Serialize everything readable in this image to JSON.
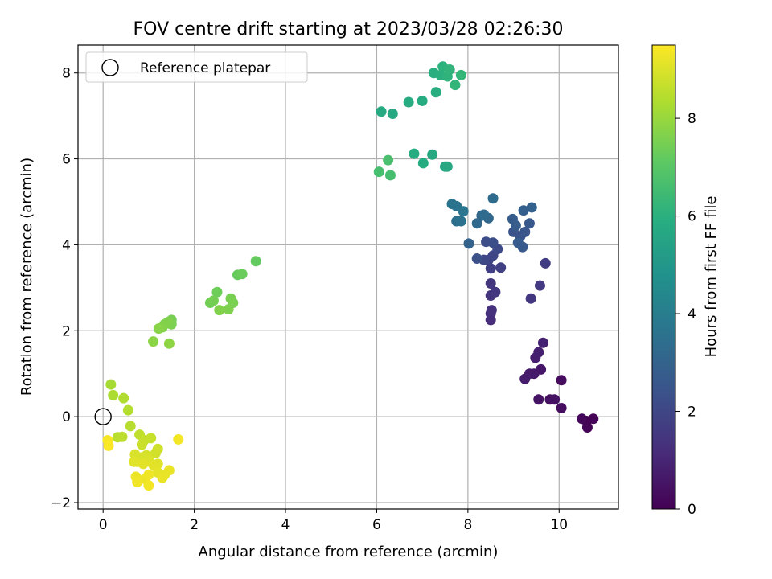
{
  "chart_data": {
    "type": "scatter",
    "title": "FOV centre drift starting at 2023/03/28 02:26:30",
    "xlabel": "Angular distance from reference (arcmin)",
    "ylabel": "Rotation from reference (arcmin)",
    "xlim": [
      -0.55,
      11.3
    ],
    "ylim": [
      -2.15,
      8.65
    ],
    "xticks": [
      0,
      2,
      4,
      6,
      8,
      10
    ],
    "yticks": [
      -2,
      0,
      2,
      4,
      6,
      8
    ],
    "grid": true,
    "legend": {
      "position": "top-left",
      "entries": [
        "Reference platepar"
      ]
    },
    "reference_point": {
      "x": 0,
      "y": 0
    },
    "colorbar": {
      "label": "Hours from first FF file",
      "range": [
        0,
        9.5
      ],
      "ticks": [
        0,
        2,
        4,
        6,
        8
      ],
      "colormap": "viridis"
    },
    "points": [
      {
        "x": 10.6,
        "y": -0.1,
        "c": 0.0
      },
      {
        "x": 10.75,
        "y": -0.05,
        "c": 0.05
      },
      {
        "x": 10.62,
        "y": -0.25,
        "c": 0.1
      },
      {
        "x": 10.5,
        "y": -0.05,
        "c": 0.15
      },
      {
        "x": 10.05,
        "y": 0.85,
        "c": 0.3
      },
      {
        "x": 10.05,
        "y": 0.2,
        "c": 0.35
      },
      {
        "x": 9.8,
        "y": 0.4,
        "c": 0.4
      },
      {
        "x": 9.9,
        "y": 0.4,
        "c": 0.45
      },
      {
        "x": 9.55,
        "y": 0.4,
        "c": 0.5
      },
      {
        "x": 9.6,
        "y": 1.1,
        "c": 0.6
      },
      {
        "x": 9.45,
        "y": 1.0,
        "c": 0.65
      },
      {
        "x": 9.35,
        "y": 1.0,
        "c": 0.7
      },
      {
        "x": 9.25,
        "y": 0.88,
        "c": 0.75
      },
      {
        "x": 9.48,
        "y": 1.37,
        "c": 0.8
      },
      {
        "x": 9.55,
        "y": 1.5,
        "c": 0.85
      },
      {
        "x": 9.65,
        "y": 1.72,
        "c": 0.9
      },
      {
        "x": 8.5,
        "y": 2.25,
        "c": 1.2
      },
      {
        "x": 8.5,
        "y": 2.4,
        "c": 1.25
      },
      {
        "x": 8.52,
        "y": 2.48,
        "c": 1.3
      },
      {
        "x": 8.5,
        "y": 2.82,
        "c": 1.4
      },
      {
        "x": 8.5,
        "y": 3.1,
        "c": 1.45
      },
      {
        "x": 8.6,
        "y": 2.9,
        "c": 1.5
      },
      {
        "x": 9.38,
        "y": 2.75,
        "c": 1.55
      },
      {
        "x": 9.58,
        "y": 3.05,
        "c": 1.6
      },
      {
        "x": 9.7,
        "y": 3.57,
        "c": 1.7
      },
      {
        "x": 8.5,
        "y": 3.45,
        "c": 1.75
      },
      {
        "x": 8.72,
        "y": 3.47,
        "c": 1.8
      },
      {
        "x": 8.45,
        "y": 3.65,
        "c": 1.9
      },
      {
        "x": 8.55,
        "y": 3.75,
        "c": 2.0
      },
      {
        "x": 8.35,
        "y": 3.65,
        "c": 2.05
      },
      {
        "x": 8.65,
        "y": 3.9,
        "c": 2.1
      },
      {
        "x": 8.4,
        "y": 4.07,
        "c": 2.2
      },
      {
        "x": 8.55,
        "y": 4.05,
        "c": 2.25
      },
      {
        "x": 8.2,
        "y": 3.68,
        "c": 2.3
      },
      {
        "x": 9.0,
        "y": 4.3,
        "c": 2.4
      },
      {
        "x": 9.15,
        "y": 4.2,
        "c": 2.45
      },
      {
        "x": 9.25,
        "y": 4.3,
        "c": 2.5
      },
      {
        "x": 9.35,
        "y": 4.5,
        "c": 2.6
      },
      {
        "x": 9.2,
        "y": 3.95,
        "c": 2.65
      },
      {
        "x": 9.1,
        "y": 4.05,
        "c": 2.7
      },
      {
        "x": 8.98,
        "y": 4.6,
        "c": 2.75
      },
      {
        "x": 9.05,
        "y": 4.45,
        "c": 2.8
      },
      {
        "x": 9.22,
        "y": 4.8,
        "c": 2.85
      },
      {
        "x": 9.4,
        "y": 4.87,
        "c": 2.9
      },
      {
        "x": 8.02,
        "y": 4.03,
        "c": 3.0
      },
      {
        "x": 8.3,
        "y": 4.68,
        "c": 3.1
      },
      {
        "x": 8.45,
        "y": 4.62,
        "c": 3.15
      },
      {
        "x": 8.2,
        "y": 4.5,
        "c": 3.2
      },
      {
        "x": 8.35,
        "y": 4.7,
        "c": 3.25
      },
      {
        "x": 8.55,
        "y": 5.08,
        "c": 3.3
      },
      {
        "x": 7.75,
        "y": 4.55,
        "c": 3.5
      },
      {
        "x": 7.85,
        "y": 4.55,
        "c": 3.55
      },
      {
        "x": 7.75,
        "y": 4.9,
        "c": 3.6
      },
      {
        "x": 7.65,
        "y": 4.95,
        "c": 3.65
      },
      {
        "x": 7.9,
        "y": 4.78,
        "c": 3.7
      },
      {
        "x": 7.5,
        "y": 5.82,
        "c": 5.6
      },
      {
        "x": 7.55,
        "y": 5.82,
        "c": 5.7
      },
      {
        "x": 7.22,
        "y": 6.1,
        "c": 5.75
      },
      {
        "x": 7.02,
        "y": 5.9,
        "c": 5.8
      },
      {
        "x": 6.82,
        "y": 6.12,
        "c": 5.85
      },
      {
        "x": 6.35,
        "y": 7.05,
        "c": 5.7
      },
      {
        "x": 6.1,
        "y": 7.1,
        "c": 5.75
      },
      {
        "x": 6.7,
        "y": 7.32,
        "c": 5.8
      },
      {
        "x": 7.0,
        "y": 7.35,
        "c": 5.85
      },
      {
        "x": 7.3,
        "y": 7.55,
        "c": 5.9
      },
      {
        "x": 7.25,
        "y": 8.0,
        "c": 5.95
      },
      {
        "x": 7.4,
        "y": 7.95,
        "c": 6.0
      },
      {
        "x": 7.45,
        "y": 8.15,
        "c": 6.05
      },
      {
        "x": 7.55,
        "y": 7.92,
        "c": 6.1
      },
      {
        "x": 7.6,
        "y": 8.08,
        "c": 6.15
      },
      {
        "x": 7.72,
        "y": 7.72,
        "c": 6.2
      },
      {
        "x": 7.85,
        "y": 7.95,
        "c": 6.25
      },
      {
        "x": 6.3,
        "y": 5.62,
        "c": 6.6
      },
      {
        "x": 6.05,
        "y": 5.7,
        "c": 6.65
      },
      {
        "x": 6.25,
        "y": 5.97,
        "c": 6.7
      },
      {
        "x": 3.35,
        "y": 3.62,
        "c": 7.2
      },
      {
        "x": 2.95,
        "y": 3.3,
        "c": 7.25
      },
      {
        "x": 3.05,
        "y": 3.32,
        "c": 7.3
      },
      {
        "x": 2.5,
        "y": 2.9,
        "c": 7.35
      },
      {
        "x": 2.35,
        "y": 2.65,
        "c": 7.4
      },
      {
        "x": 2.42,
        "y": 2.7,
        "c": 7.45
      },
      {
        "x": 2.8,
        "y": 2.75,
        "c": 7.5
      },
      {
        "x": 2.85,
        "y": 2.65,
        "c": 7.55
      },
      {
        "x": 2.75,
        "y": 2.5,
        "c": 7.6
      },
      {
        "x": 2.55,
        "y": 2.48,
        "c": 7.65
      },
      {
        "x": 1.5,
        "y": 2.25,
        "c": 7.5
      },
      {
        "x": 1.5,
        "y": 2.15,
        "c": 7.55
      },
      {
        "x": 1.35,
        "y": 2.15,
        "c": 7.6
      },
      {
        "x": 1.42,
        "y": 2.2,
        "c": 7.65
      },
      {
        "x": 1.3,
        "y": 2.08,
        "c": 7.7
      },
      {
        "x": 1.22,
        "y": 2.05,
        "c": 7.75
      },
      {
        "x": 1.1,
        "y": 1.75,
        "c": 7.8
      },
      {
        "x": 1.45,
        "y": 1.7,
        "c": 7.85
      },
      {
        "x": 0.17,
        "y": 0.75,
        "c": 8.2
      },
      {
        "x": 0.22,
        "y": 0.5,
        "c": 8.3
      },
      {
        "x": 0.45,
        "y": 0.43,
        "c": 8.35
      },
      {
        "x": 0.55,
        "y": 0.15,
        "c": 8.4
      },
      {
        "x": 0.6,
        "y": -0.22,
        "c": 8.45
      },
      {
        "x": 0.32,
        "y": -0.48,
        "c": 8.5
      },
      {
        "x": 0.42,
        "y": -0.47,
        "c": 8.55
      },
      {
        "x": 0.8,
        "y": -0.42,
        "c": 8.6
      },
      {
        "x": 0.9,
        "y": -0.55,
        "c": 8.65
      },
      {
        "x": 1.05,
        "y": -0.5,
        "c": 8.7
      },
      {
        "x": 0.85,
        "y": -0.65,
        "c": 8.75
      },
      {
        "x": 1.2,
        "y": -0.75,
        "c": 8.8
      },
      {
        "x": 1.15,
        "y": -0.85,
        "c": 8.85
      },
      {
        "x": 0.95,
        "y": -0.9,
        "c": 8.9
      },
      {
        "x": 0.7,
        "y": -0.88,
        "c": 8.95
      },
      {
        "x": 0.85,
        "y": -0.95,
        "c": 8.95
      },
      {
        "x": 1.0,
        "y": -1.0,
        "c": 9.0
      },
      {
        "x": 0.75,
        "y": -1.05,
        "c": 9.0
      },
      {
        "x": 0.68,
        "y": -1.05,
        "c": 9.05
      },
      {
        "x": 1.2,
        "y": -1.1,
        "c": 9.05
      },
      {
        "x": 1.1,
        "y": -1.12,
        "c": 9.1
      },
      {
        "x": 0.88,
        "y": -1.1,
        "c": 9.1
      },
      {
        "x": 1.2,
        "y": -1.3,
        "c": 9.15
      },
      {
        "x": 1.35,
        "y": -1.35,
        "c": 9.15
      },
      {
        "x": 1.45,
        "y": -1.25,
        "c": 9.2
      },
      {
        "x": 1.3,
        "y": -1.42,
        "c": 9.2
      },
      {
        "x": 0.72,
        "y": -1.4,
        "c": 9.25
      },
      {
        "x": 0.92,
        "y": -1.45,
        "c": 9.25
      },
      {
        "x": 1.0,
        "y": -1.35,
        "c": 9.3
      },
      {
        "x": 0.75,
        "y": -1.52,
        "c": 9.3
      },
      {
        "x": 1.0,
        "y": -1.6,
        "c": 9.35
      },
      {
        "x": 1.65,
        "y": -0.53,
        "c": 9.35
      },
      {
        "x": 0.1,
        "y": -0.55,
        "c": 9.4
      },
      {
        "x": 0.12,
        "y": -0.68,
        "c": 9.45
      }
    ]
  }
}
